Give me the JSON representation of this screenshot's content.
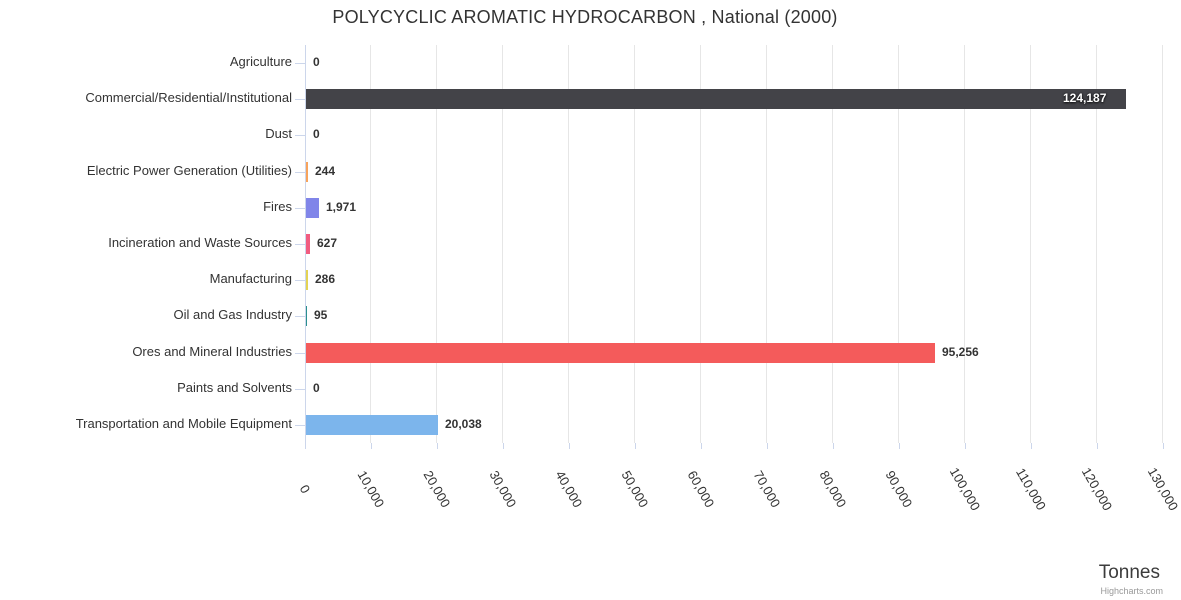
{
  "chart_data": {
    "type": "bar",
    "orientation": "horizontal",
    "title": "POLYCYCLIC AROMATIC HYDROCARBON , National (2000)",
    "xlabel": "Tonnes",
    "ylabel": "",
    "categories": [
      "Agriculture",
      "Commercial/Residential/Institutional",
      "Dust",
      "Electric Power Generation (Utilities)",
      "Fires",
      "Incineration and Waste Sources",
      "Manufacturing",
      "Oil and Gas Industry",
      "Ores and Mineral Industries",
      "Paints and Solvents",
      "Transportation and Mobile Equipment"
    ],
    "values": [
      0,
      124187,
      0,
      244,
      1971,
      627,
      286,
      95,
      95256,
      0,
      20038
    ],
    "value_labels": [
      "0",
      "124,187",
      "0",
      "244",
      "1,971",
      "627",
      "286",
      "95",
      "95,256",
      "0",
      "20,038"
    ],
    "bar_colors": [
      "#7cb5ec",
      "#434348",
      "#90ed7d",
      "#f7a35c",
      "#8085e9",
      "#f15c80",
      "#e4d354",
      "#2b908f",
      "#f45b5b",
      "#91e8e1",
      "#7cb5ec"
    ],
    "value_axis": {
      "min": 0,
      "max": 130000,
      "tick_interval": 10000,
      "tick_labels": [
        "0",
        "10,000",
        "20,000",
        "30,000",
        "40,000",
        "50,000",
        "60,000",
        "70,000",
        "80,000",
        "90,000",
        "100,000",
        "110,000",
        "120,000",
        "130,000"
      ],
      "label_rotation_deg": 60
    },
    "grid": true,
    "legend": false
  },
  "credits": {
    "label": "Highcharts.com"
  },
  "colors": {
    "axis_line": "#ccd6eb",
    "gridline": "#e6e6e6",
    "text": "#333333",
    "inside_label": "#ffffff",
    "credits": "#999999"
  }
}
